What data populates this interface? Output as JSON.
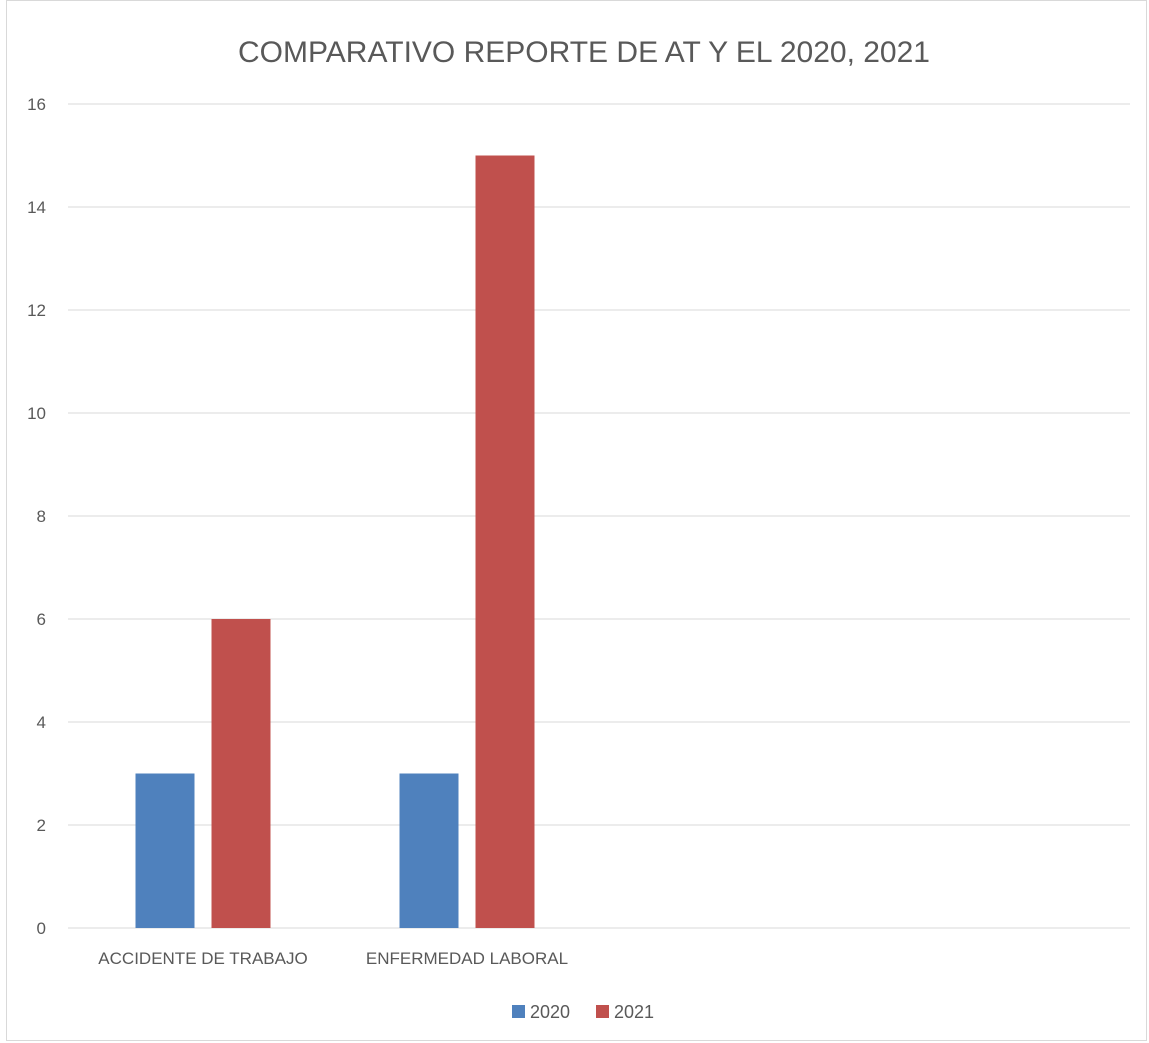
{
  "chart_data": {
    "type": "bar",
    "title": "COMPARATIVO REPORTE DE AT Y EL 2020, 2021",
    "categories": [
      "ACCIDENTE DE TRABAJO",
      "ENFERMEDAD LABORAL"
    ],
    "series": [
      {
        "name": "2020",
        "values": [
          3,
          3
        ],
        "color": "#4F81BD"
      },
      {
        "name": "2021",
        "values": [
          6,
          15
        ],
        "color": "#C0504D"
      }
    ],
    "y_ticks": [
      "0",
      "2",
      "4",
      "6",
      "8",
      "10",
      "12",
      "14",
      "16"
    ],
    "ylim": [
      0,
      16
    ],
    "grid": true,
    "legend_position": "bottom"
  }
}
